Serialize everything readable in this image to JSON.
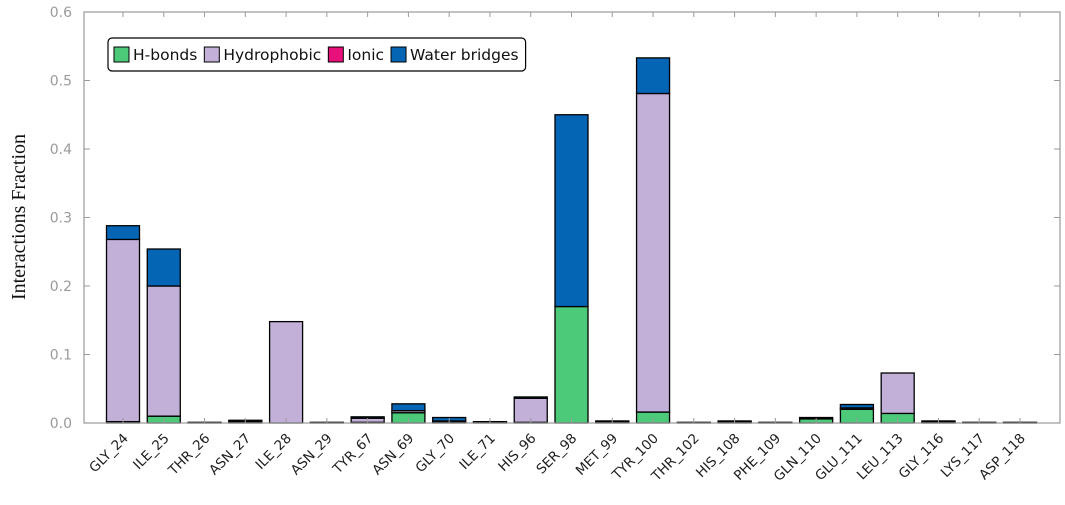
{
  "chart_data": {
    "type": "bar",
    "stacked": true,
    "title": "",
    "xlabel": "",
    "ylabel": "Interactions Fraction",
    "ylim": [
      0,
      0.6
    ],
    "yticks": [
      "0.0",
      "0.1",
      "0.2",
      "0.3",
      "0.4",
      "0.5",
      "0.6"
    ],
    "grid": false,
    "legend_position": "top-left",
    "categories": [
      "GLY_24",
      "ILE_25",
      "THR_26",
      "ASN_27",
      "ILE_28",
      "ASN_29",
      "TYR_67",
      "ASN_69",
      "GLY_70",
      "ILE_71",
      "HIS_96",
      "SER_98",
      "MET_99",
      "TYR_100",
      "THR_102",
      "HIS_108",
      "PHE_109",
      "GLN_110",
      "GLU_111",
      "LEU_113",
      "GLY_116",
      "LYS_117",
      "ASP_118"
    ],
    "series": [
      {
        "name": "H-bonds",
        "color": "#4dc97a",
        "values": [
          0.002,
          0.01,
          0.0,
          0.001,
          0.0,
          0.0,
          0.001,
          0.015,
          0.001,
          0.0,
          0.001,
          0.17,
          0.001,
          0.016,
          0.0,
          0.001,
          0.0,
          0.006,
          0.02,
          0.014,
          0.001,
          0.0,
          0.0
        ]
      },
      {
        "name": "Hydrophobic",
        "color": "#c2b0d9",
        "values": [
          0.266,
          0.19,
          0.001,
          0.001,
          0.148,
          0.001,
          0.006,
          0.003,
          0.002,
          0.001,
          0.035,
          0.0,
          0.001,
          0.465,
          0.001,
          0.001,
          0.001,
          0.001,
          0.002,
          0.059,
          0.001,
          0.001,
          0.001
        ]
      },
      {
        "name": "Ionic",
        "color": "#e8107a",
        "values": [
          0,
          0,
          0,
          0,
          0,
          0,
          0,
          0,
          0,
          0,
          0,
          0,
          0,
          0,
          0,
          0,
          0,
          0,
          0,
          0,
          0,
          0,
          0
        ]
      },
      {
        "name": "Water bridges",
        "color": "#0565b5",
        "values": [
          0.02,
          0.054,
          0.0,
          0.002,
          0.0,
          0.0,
          0.002,
          0.01,
          0.005,
          0.001,
          0.002,
          0.28,
          0.001,
          0.052,
          0.0,
          0.001,
          0.0,
          0.001,
          0.005,
          0.0,
          0.001,
          0.0,
          0.0
        ]
      }
    ]
  }
}
